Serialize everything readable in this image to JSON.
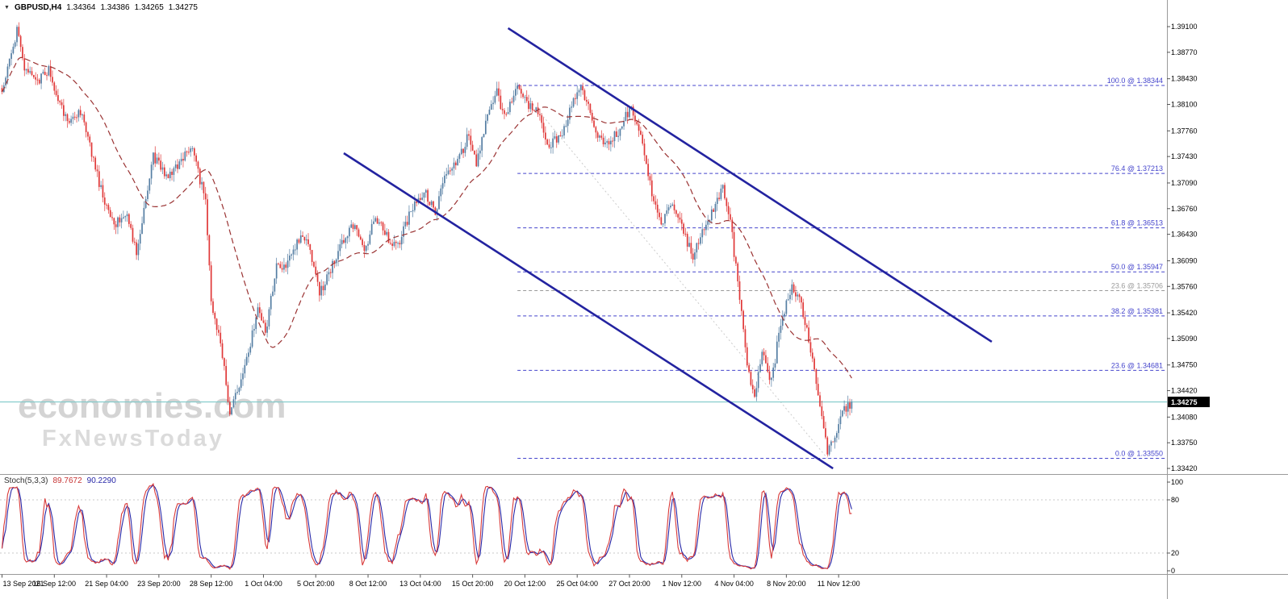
{
  "header": {
    "symbol": "GBPUSD,H4",
    "open": "1.34364",
    "high": "1.34386",
    "low": "1.34265",
    "close": "1.34275"
  },
  "watermark": {
    "line1": "economies.com",
    "line2": "FxNewsToday"
  },
  "colors": {
    "bull": "#557ea3",
    "bear": "#e03838",
    "ma": "#9b3434",
    "channel": "#2323a0",
    "fib": "#4444cc",
    "fib_muted": "#9a9a9a",
    "price_line": "#7fcaca",
    "badge_bg": "#000000",
    "badge_text": "#ffffff",
    "stoch_main": "#d93a3a",
    "stoch_signal": "#2828a8",
    "grid": "#c8c8c8",
    "axis_border": "#9a9a9a",
    "text": "#000000"
  },
  "chart_data": {
    "type": "candlestick",
    "symbol": "GBPUSD",
    "timeframe": "H4",
    "title": "GBPUSD,H4 1.34364 1.34386 1.34265 1.34275",
    "current_price": 1.34275,
    "current_price_label": "1.34275",
    "y_ticks": [
      "1.39100",
      "1.38770",
      "1.38430",
      "1.38100",
      "1.37760",
      "1.37430",
      "1.37090",
      "1.36760",
      "1.36430",
      "1.36090",
      "1.35760",
      "1.35420",
      "1.35090",
      "1.34750",
      "1.34420",
      "1.34080",
      "1.33750",
      "1.33420"
    ],
    "x_ticks": [
      "13 Sep 2021",
      "16 Sep 12:00",
      "21 Sep 04:00",
      "23 Sep 20:00",
      "28 Sep 12:00",
      "1 Oct 04:00",
      "5 Oct 20:00",
      "8 Oct 12:00",
      "13 Oct 04:00",
      "15 Oct 20:00",
      "20 Oct 12:00",
      "25 Oct 04:00",
      "27 Oct 20:00",
      "1 Nov 12:00",
      "4 Nov 04:00",
      "8 Nov 20:00",
      "11 Nov 12:00"
    ],
    "candles_per_tick": 28,
    "candle_count": 456,
    "seed": 1234567,
    "price_waypoints": [
      [
        0,
        1.383
      ],
      [
        8,
        1.3905
      ],
      [
        12,
        1.3855
      ],
      [
        19,
        1.3838
      ],
      [
        25,
        1.3855
      ],
      [
        29,
        1.3818
      ],
      [
        36,
        1.3785
      ],
      [
        42,
        1.38
      ],
      [
        47,
        1.3758
      ],
      [
        53,
        1.37
      ],
      [
        60,
        1.3652
      ],
      [
        66,
        1.3672
      ],
      [
        72,
        1.3622
      ],
      [
        77,
        1.369
      ],
      [
        81,
        1.3742
      ],
      [
        88,
        1.3718
      ],
      [
        95,
        1.3735
      ],
      [
        102,
        1.3755
      ],
      [
        106,
        1.371
      ],
      [
        109,
        1.3693
      ],
      [
        112,
        1.3558
      ],
      [
        117,
        1.3505
      ],
      [
        122,
        1.3412
      ],
      [
        127,
        1.345
      ],
      [
        131,
        1.3482
      ],
      [
        137,
        1.355
      ],
      [
        141,
        1.3515
      ],
      [
        147,
        1.36
      ],
      [
        153,
        1.3605
      ],
      [
        160,
        1.364
      ],
      [
        165,
        1.3625
      ],
      [
        170,
        1.3565
      ],
      [
        175,
        1.3592
      ],
      [
        181,
        1.3625
      ],
      [
        188,
        1.3655
      ],
      [
        194,
        1.362
      ],
      [
        200,
        1.3665
      ],
      [
        206,
        1.364
      ],
      [
        212,
        1.3628
      ],
      [
        219,
        1.3672
      ],
      [
        226,
        1.37
      ],
      [
        232,
        1.3672
      ],
      [
        238,
        1.3722
      ],
      [
        245,
        1.3742
      ],
      [
        250,
        1.3772
      ],
      [
        254,
        1.3732
      ],
      [
        260,
        1.38
      ],
      [
        265,
        1.3825
      ],
      [
        269,
        1.3792
      ],
      [
        276,
        1.3833
      ],
      [
        281,
        1.3812
      ],
      [
        287,
        1.38
      ],
      [
        293,
        1.3756
      ],
      [
        299,
        1.377
      ],
      [
        307,
        1.382
      ],
      [
        311,
        1.383
      ],
      [
        317,
        1.378
      ],
      [
        323,
        1.3756
      ],
      [
        330,
        1.3775
      ],
      [
        337,
        1.3808
      ],
      [
        343,
        1.3765
      ],
      [
        348,
        1.3692
      ],
      [
        353,
        1.3656
      ],
      [
        359,
        1.368
      ],
      [
        365,
        1.3645
      ],
      [
        370,
        1.3616
      ],
      [
        376,
        1.365
      ],
      [
        382,
        1.368
      ],
      [
        386,
        1.3702
      ],
      [
        390,
        1.366
      ],
      [
        394,
        1.358
      ],
      [
        399,
        1.3478
      ],
      [
        403,
        1.3432
      ],
      [
        407,
        1.349
      ],
      [
        412,
        1.3452
      ],
      [
        417,
        1.353
      ],
      [
        423,
        1.3575
      ],
      [
        427,
        1.356
      ],
      [
        431,
        1.352
      ],
      [
        436,
        1.3452
      ],
      [
        442,
        1.3362
      ],
      [
        446,
        1.3382
      ],
      [
        450,
        1.3415
      ],
      [
        455,
        1.34275
      ]
    ],
    "fib_start_index": 276,
    "fib_levels": [
      {
        "label": "100.0 @ 1.38344",
        "price": 1.38344,
        "muted": false
      },
      {
        "label": "76.4 @ 1.37213",
        "price": 1.37213,
        "muted": false
      },
      {
        "label": "61.8 @ 1.36513",
        "price": 1.36513,
        "muted": false
      },
      {
        "label": "50.0 @ 1.35947",
        "price": 1.35947,
        "muted": false
      },
      {
        "label": "23.6 @ 1.35706",
        "price": 1.35706,
        "muted": true
      },
      {
        "label": "38.2 @ 1.35381",
        "price": 1.35381,
        "muted": false
      },
      {
        "label": "23.6 @ 1.34681",
        "price": 1.34681,
        "muted": false
      },
      {
        "label": "0.0 @ 1.33550",
        "price": 1.3355,
        "muted": false
      }
    ],
    "fib_diagonal": {
      "i1": 276,
      "p1": 1.38344,
      "i2": 442,
      "p2": 1.3355
    },
    "trend_channel": [
      {
        "i1": 271,
        "p1": 1.3908,
        "i2": 530,
        "p2": 1.35048
      },
      {
        "i1": 183,
        "p1": 1.37473,
        "i2": 445,
        "p2": 1.3342
      }
    ],
    "moving_average": {
      "period": 34,
      "dash": "7,4"
    },
    "stochastic": {
      "label": "Stoch(5,3,3)",
      "value_main": "89.7672",
      "value_signal": "90.2290",
      "k_period": 5,
      "slowing": 3,
      "d_period": 3,
      "axis_ticks": [
        "100",
        "80",
        "20",
        "0"
      ],
      "level_lines": [
        80,
        20
      ]
    }
  }
}
